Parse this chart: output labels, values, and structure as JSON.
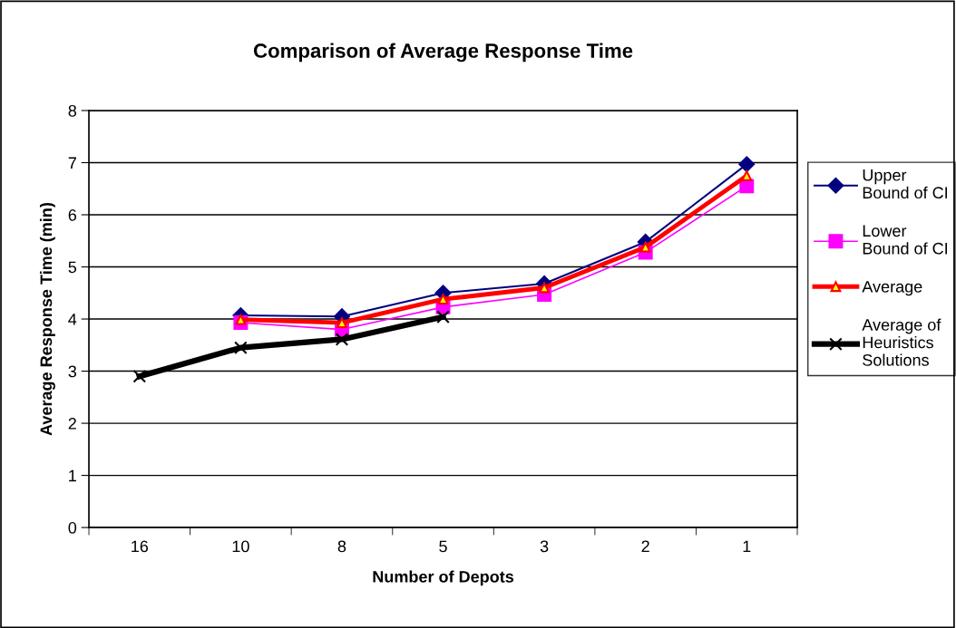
{
  "chart_data": {
    "type": "line",
    "title": "Comparison of Average Response Time",
    "xlabel": "Number of Depots",
    "ylabel": "Average Response Time (min)",
    "categories": [
      "16",
      "10",
      "8",
      "5",
      "3",
      "2",
      "1"
    ],
    "series": [
      {
        "name": "Upper Bound of CI",
        "color": "#000080",
        "marker": "diamond",
        "values": [
          null,
          4.07,
          4.05,
          4.5,
          4.68,
          5.48,
          6.97
        ]
      },
      {
        "name": "Lower Bound of CI",
        "color": "#ff00ff",
        "marker": "square",
        "values": [
          null,
          3.93,
          3.8,
          4.23,
          4.47,
          5.28,
          6.55
        ]
      },
      {
        "name": "Average",
        "color": "#ff0000",
        "marker": "triangle",
        "values": [
          null,
          3.99,
          3.93,
          4.38,
          4.6,
          5.38,
          6.75
        ]
      },
      {
        "name": "Average of Heuristics Solutions",
        "color": "#000000",
        "marker": "cross",
        "values": [
          2.9,
          3.45,
          3.61,
          4.04,
          null,
          null,
          null
        ]
      }
    ],
    "ylim": [
      0,
      8
    ],
    "yticks": [
      0,
      1,
      2,
      3,
      4,
      5,
      6,
      7,
      8
    ],
    "grid": "y",
    "legend": "right"
  }
}
